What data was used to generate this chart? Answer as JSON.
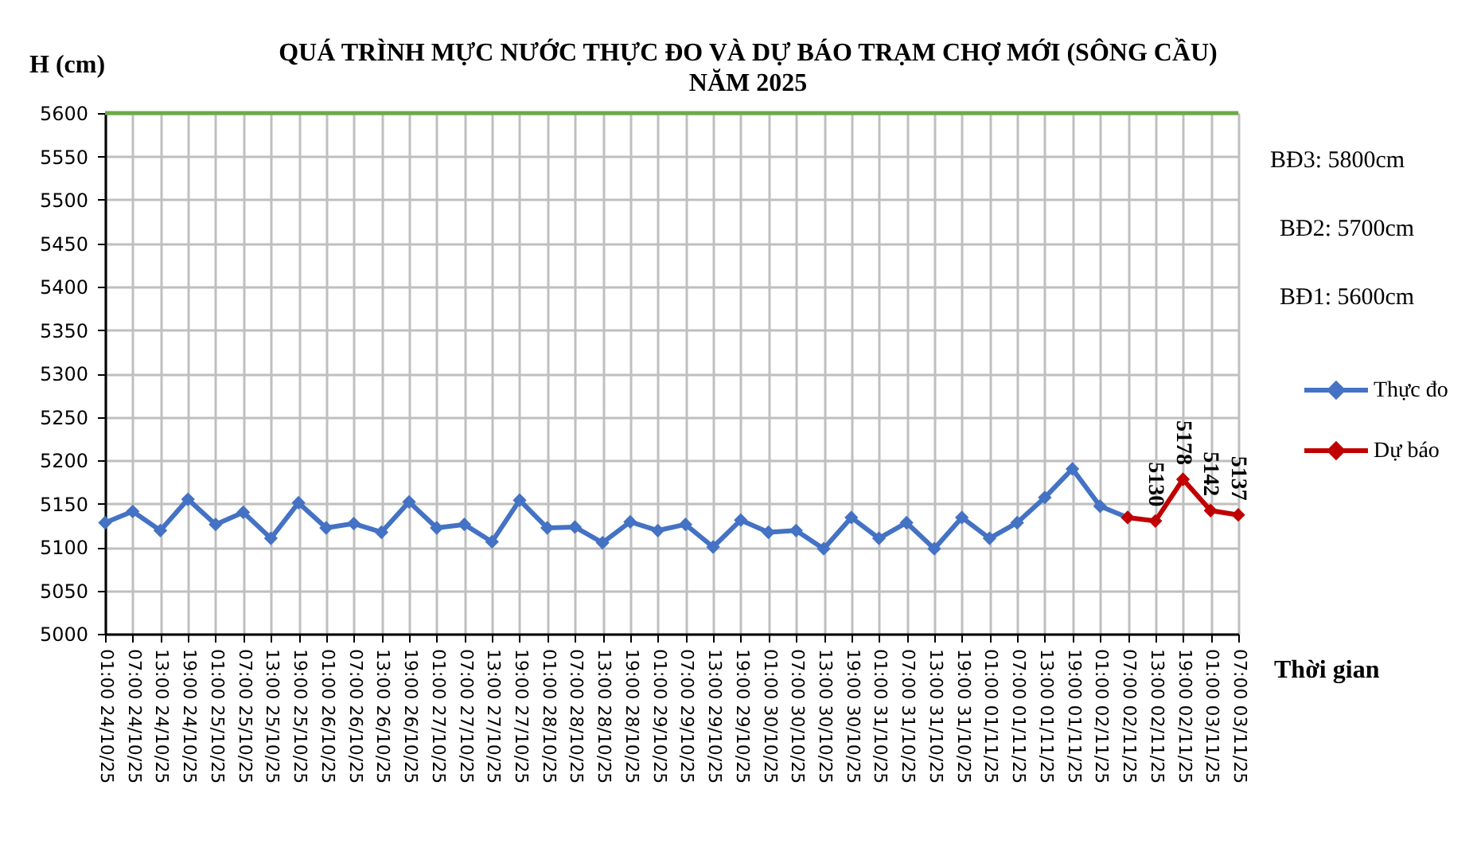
{
  "chart_data": {
    "type": "line",
    "title": "QUÁ TRÌNH MỰC NƯỚC THỰC ĐO VÀ DỰ BÁO TRẠM CHỢ MỚI (SÔNG CẦU)",
    "subtitle": "NĂM 2025",
    "xlabel": "Thời gian",
    "ylabel": "H (cm)",
    "categories": [
      "01:00 24/10/25",
      "07:00 24/10/25",
      "13:00 24/10/25",
      "19:00 24/10/25",
      "01:00 25/10/25",
      "07:00 25/10/25",
      "13:00 25/10/25",
      "19:00 25/10/25",
      "01:00 26/10/25",
      "07:00 26/10/25",
      "13:00 26/10/25",
      "19:00 26/10/25",
      "01:00 27/10/25",
      "07:00 27/10/25",
      "13:00 27/10/25",
      "19:00 27/10/25",
      "01:00 28/10/25",
      "07:00 28/10/25",
      "13:00 28/10/25",
      "19:00 28/10/25",
      "01:00 29/10/25",
      "07:00 29/10/25",
      "13:00 29/10/25",
      "19:00 29/10/25",
      "01:00 30/10/25",
      "07:00 30/10/25",
      "13:00 30/10/25",
      "19:00 30/10/25",
      "01:00 31/10/25",
      "07:00 31/10/25",
      "13:00 31/10/25",
      "19:00 31/10/25",
      "01:00 01/11/25",
      "07:00 01/11/25",
      "13:00 01/11/25",
      "19:00 01/11/25",
      "01:00 02/11/25",
      "07:00 02/11/25",
      "13:00 02/11/25",
      "19:00 02/11/25",
      "01:00 03/11/25",
      "07:00 03/11/25"
    ],
    "series": [
      {
        "name": "Thực đo",
        "color": "#4472c4",
        "values": [
          5128,
          5141,
          5119,
          5155,
          5126,
          5140,
          5110,
          5151,
          5122,
          5127,
          5117,
          5152,
          5122,
          5126,
          5106,
          5154,
          5122,
          5123,
          5105,
          5129,
          5119,
          5126,
          5100,
          5131,
          5117,
          5119,
          5098,
          5134,
          5110,
          5128,
          5098,
          5134,
          5110,
          5128,
          5157,
          5190,
          5147,
          5134,
          null,
          null,
          null,
          null
        ]
      },
      {
        "name": "Dự báo",
        "color": "#c00000",
        "values": [
          null,
          null,
          null,
          null,
          null,
          null,
          null,
          null,
          null,
          null,
          null,
          null,
          null,
          null,
          null,
          null,
          null,
          null,
          null,
          null,
          null,
          null,
          null,
          null,
          null,
          null,
          null,
          null,
          null,
          null,
          null,
          null,
          null,
          null,
          null,
          null,
          null,
          5134,
          5130,
          5178,
          5142,
          5137
        ],
        "value_labels": [
          null,
          null,
          null,
          null,
          null,
          null,
          null,
          null,
          null,
          null,
          null,
          null,
          null,
          null,
          null,
          null,
          null,
          null,
          null,
          null,
          null,
          null,
          null,
          null,
          null,
          null,
          null,
          null,
          null,
          null,
          null,
          null,
          null,
          null,
          null,
          null,
          null,
          null,
          "5130",
          "5178",
          "5142",
          "5137"
        ]
      }
    ],
    "ylim": [
      5000,
      5600
    ],
    "yticks": [
      5000,
      5050,
      5100,
      5150,
      5200,
      5250,
      5300,
      5350,
      5400,
      5450,
      5500,
      5550,
      5600
    ],
    "ref_lines": [
      {
        "axis": "y",
        "value": 5600,
        "color": "#6aab46"
      }
    ],
    "annotations": [
      "BĐ3: 5800cm",
      "BĐ2: 5700cm",
      "BĐ1: 5600cm"
    ],
    "grid": true,
    "legend": "right",
    "marker": "diamond",
    "line_style": "solid"
  }
}
